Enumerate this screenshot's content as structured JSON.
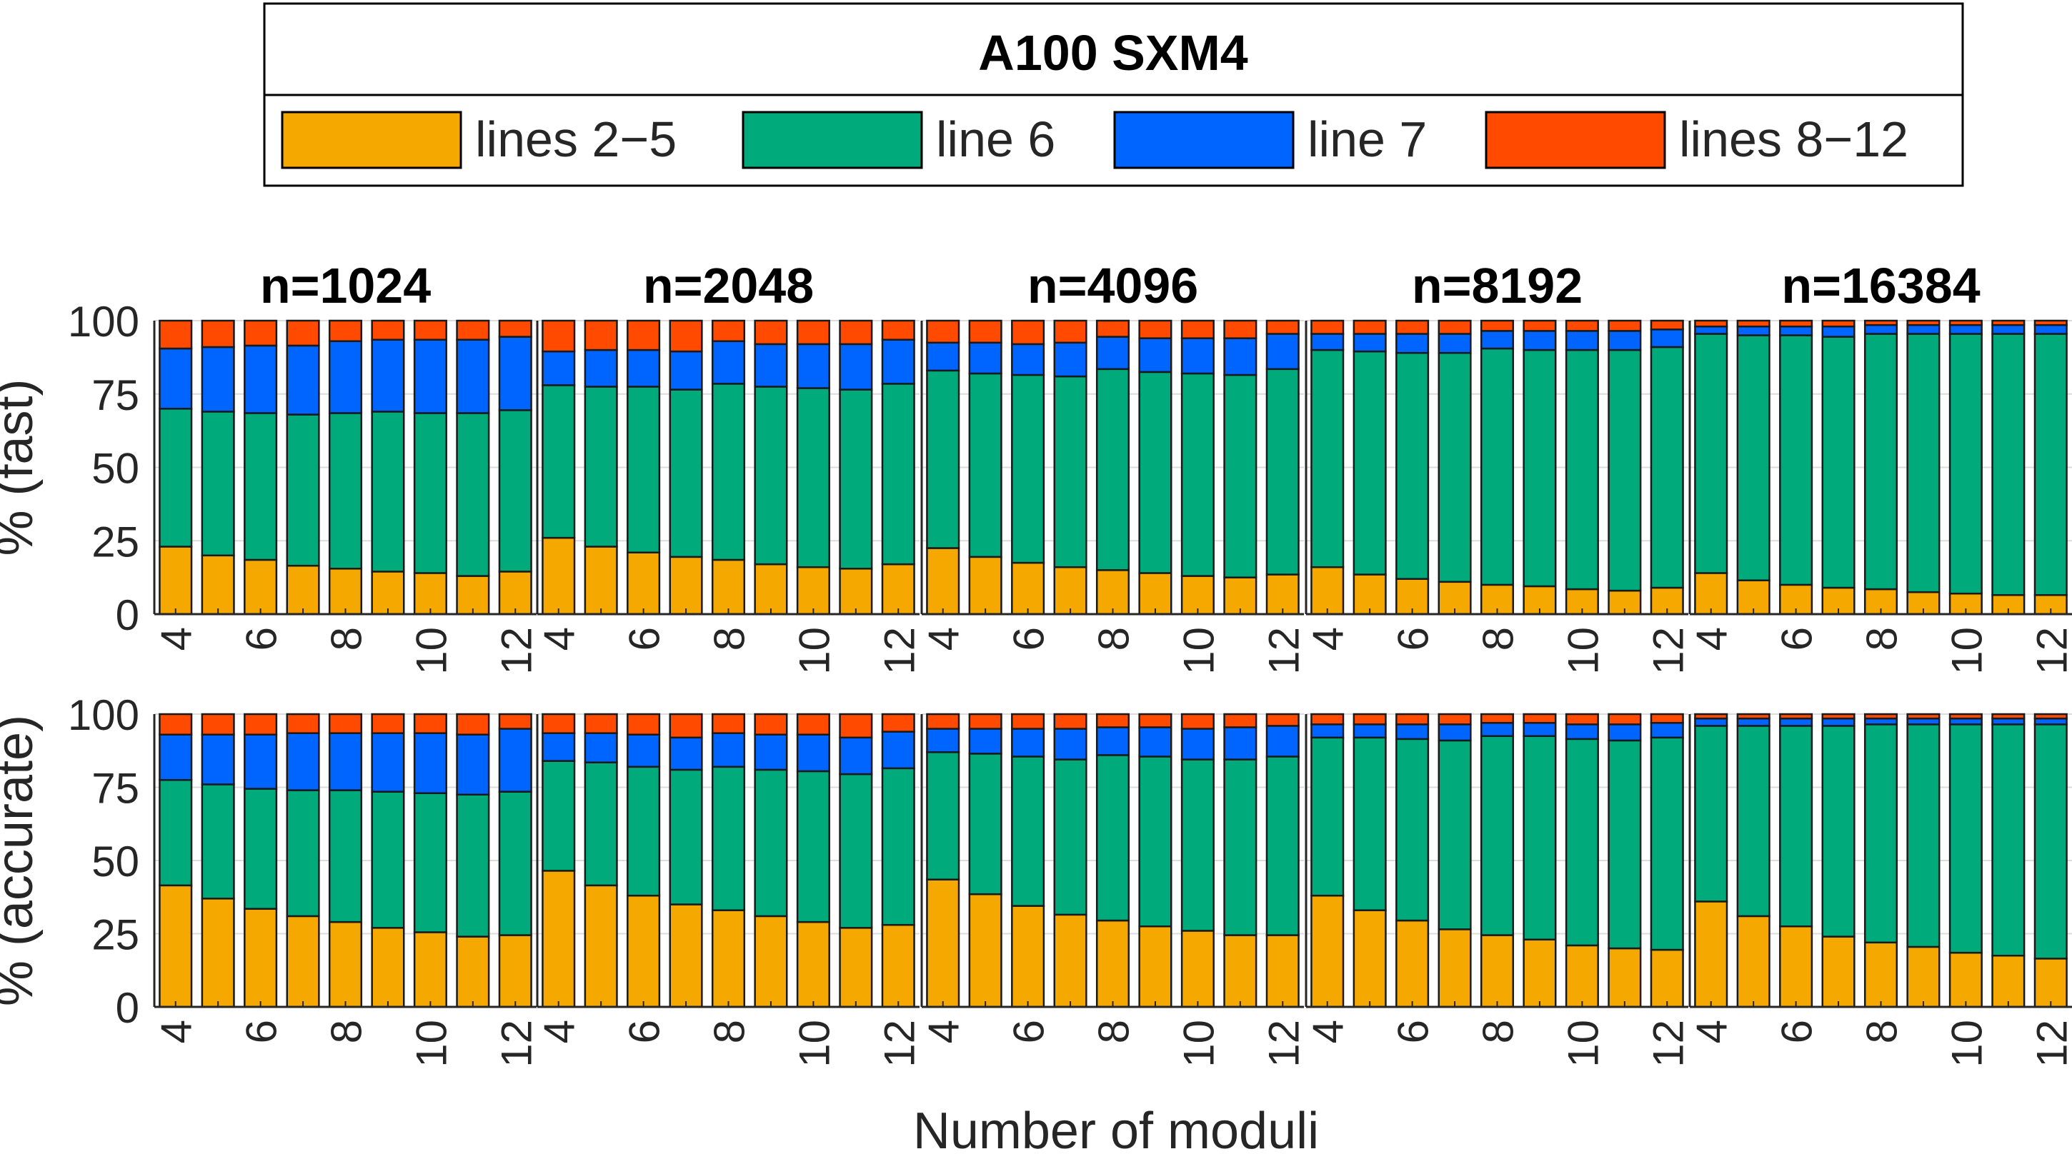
{
  "chart_data": {
    "type": "bar",
    "stacked": true,
    "title": "A100 SXM4",
    "xlabel": "Number of moduli",
    "legend": {
      "placement": "top",
      "orientation": "horizontal",
      "boxed": true
    },
    "series_info": [
      {
        "name": "lines 2−5",
        "color": "#F5A800"
      },
      {
        "name": "line 6",
        "color": "#00AA7A"
      },
      {
        "name": "line 7",
        "color": "#0064FF"
      },
      {
        "name": "lines 8−12",
        "color": "#FF4A00"
      }
    ],
    "x": [
      4,
      5,
      6,
      7,
      8,
      9,
      10,
      11,
      12
    ],
    "xticks": [
      "4",
      "6",
      "8",
      "10",
      "12"
    ],
    "ylim": [
      0,
      100
    ],
    "yticks": [
      "0",
      "25",
      "50",
      "75",
      "100"
    ],
    "grid": true,
    "rows": [
      {
        "ylabel": "% (fast)",
        "panels": [
          {
            "title": "n=1024",
            "series": [
              [
                23,
                20,
                18.5,
                16.5,
                15.5,
                14.5,
                14,
                13,
                14.5
              ],
              [
                47,
                49,
                50,
                51.5,
                53,
                54.5,
                54.5,
                55.5,
                55
              ],
              [
                20.5,
                22,
                23,
                23.5,
                24.5,
                24.5,
                25,
                25,
                25
              ],
              [
                9.5,
                9,
                8.5,
                8.5,
                7,
                6.5,
                6.5,
                6.5,
                5.5
              ]
            ]
          },
          {
            "title": "n=2048",
            "series": [
              [
                26,
                23,
                21,
                19.5,
                18.5,
                17,
                16,
                15.5,
                17
              ],
              [
                52,
                54.5,
                56.5,
                57,
                60,
                60.5,
                61,
                61,
                61.5
              ],
              [
                11.5,
                12.5,
                12.5,
                13,
                14.5,
                14.5,
                15,
                15.5,
                15
              ],
              [
                10.5,
                10,
                10,
                10.5,
                7,
                8,
                8,
                8,
                6.5
              ]
            ]
          },
          {
            "title": "n=4096",
            "series": [
              [
                22.5,
                19.5,
                17.5,
                16,
                15,
                14,
                13,
                12.5,
                13.5
              ],
              [
                60.5,
                62.5,
                64,
                65,
                68.5,
                68.5,
                69,
                69,
                70
              ],
              [
                9.5,
                10.5,
                10.5,
                11.5,
                11,
                11.5,
                12,
                12.5,
                12
              ],
              [
                7.5,
                7.5,
                8,
                7.5,
                5.5,
                6,
                6,
                6,
                4.5
              ]
            ]
          },
          {
            "title": "n=8192",
            "series": [
              [
                16,
                13.5,
                12,
                11,
                10,
                9.5,
                8.5,
                8,
                9
              ],
              [
                74,
                76,
                77,
                78,
                80.5,
                80.5,
                81.5,
                82,
                82
              ],
              [
                5.5,
                6,
                6.5,
                6.5,
                6,
                6.5,
                6.5,
                6.5,
                6
              ],
              [
                4.5,
                4.5,
                4.5,
                4.5,
                3.5,
                3.5,
                3.5,
                3.5,
                3
              ]
            ]
          },
          {
            "title": "n=16384",
            "series": [
              [
                14,
                11.5,
                10,
                9,
                8.5,
                7.5,
                7,
                6.5,
                6.5
              ],
              [
                81.5,
                83.5,
                85,
                85.5,
                87,
                88,
                88.5,
                89,
                89
              ],
              [
                2.5,
                3,
                3,
                3.5,
                3,
                3,
                3,
                3,
                3
              ],
              [
                2,
                2,
                2,
                2,
                1.5,
                1.5,
                1.5,
                1.5,
                1.5
              ]
            ]
          }
        ]
      },
      {
        "ylabel": "% (accurate)",
        "panels": [
          {
            "title": "",
            "series": [
              [
                41.5,
                37,
                33.5,
                31,
                29,
                27,
                25.5,
                24,
                24.5
              ],
              [
                36,
                39,
                41,
                43,
                45,
                46.5,
                47.5,
                48.5,
                49
              ],
              [
                15.5,
                17,
                18.5,
                19.5,
                19.5,
                20,
                20.5,
                20.5,
                21.5
              ],
              [
                7,
                7,
                7,
                6.5,
                6.5,
                6.5,
                6.5,
                7,
                5
              ]
            ]
          },
          {
            "title": "",
            "series": [
              [
                46.5,
                41.5,
                38,
                35,
                33,
                31,
                29,
                27,
                28
              ],
              [
                37.5,
                42,
                44,
                46,
                49,
                50,
                51.5,
                52.5,
                53.5
              ],
              [
                9.5,
                10,
                11,
                11,
                11.5,
                12,
                12.5,
                12.5,
                12.5
              ],
              [
                6.5,
                6.5,
                7,
                8,
                6.5,
                7,
                7,
                8,
                6
              ]
            ]
          },
          {
            "title": "",
            "series": [
              [
                43.5,
                38.5,
                34.5,
                31.5,
                29.5,
                27.5,
                26,
                24.5,
                24.5
              ],
              [
                43.5,
                48,
                51,
                53,
                56.5,
                58,
                58.5,
                60,
                61
              ],
              [
                8,
                8.5,
                9.5,
                10.5,
                9.5,
                10,
                10.5,
                11,
                10.5
              ],
              [
                5,
                5,
                5,
                5,
                4.5,
                4.5,
                5,
                4.5,
                4
              ]
            ]
          },
          {
            "title": "",
            "series": [
              [
                38,
                33,
                29.5,
                26.5,
                24.5,
                23,
                21,
                20,
                19.5
              ],
              [
                54,
                59,
                62,
                64.5,
                68,
                69.5,
                70.5,
                71,
                72.5
              ],
              [
                4.5,
                4.5,
                5,
                5.5,
                4.5,
                4.5,
                5,
                5.5,
                5
              ],
              [
                3.5,
                3.5,
                3.5,
                3.5,
                3,
                3,
                3.5,
                3.5,
                3
              ]
            ]
          },
          {
            "title": "",
            "series": [
              [
                36,
                31,
                27.5,
                24,
                22,
                20.5,
                18.5,
                17.5,
                16.5
              ],
              [
                60,
                65,
                68.5,
                72,
                74.5,
                76,
                78,
                79,
                80
              ],
              [
                2.5,
                2.5,
                2.5,
                2.5,
                2,
                2,
                2,
                2,
                2
              ],
              [
                1.5,
                1.5,
                1.5,
                1.5,
                1.5,
                1.5,
                1.5,
                1.5,
                1.5
              ]
            ]
          }
        ]
      }
    ]
  }
}
